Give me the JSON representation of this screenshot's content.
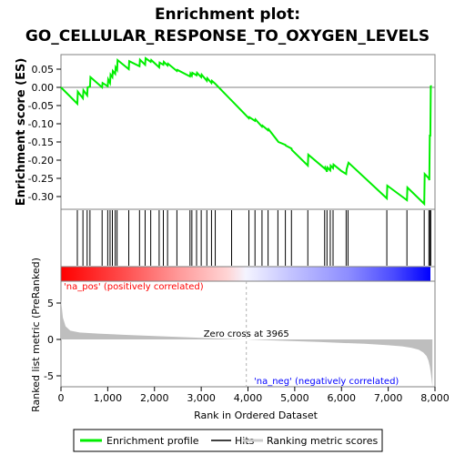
{
  "chart_data": {
    "type": "line",
    "title_line1": "Enrichment plot:",
    "title_line2": "GO_CELLULAR_RESPONSE_TO_OXYGEN_LEVELS",
    "es_panel": {
      "ylabel": "Enrichment score (ES)",
      "ylim": [
        -0.335,
        0.09
      ],
      "yticks": [
        0.05,
        0.0,
        -0.05,
        -0.1,
        -0.15,
        -0.2,
        -0.25,
        -0.3
      ],
      "ytick_labels": [
        "0.05",
        "0.00",
        "-0.05",
        "-0.10",
        "-0.15",
        "-0.20",
        "-0.25",
        "-0.30"
      ],
      "series_name": "Enrichment profile",
      "color": "#00ee00",
      "x": [
        0,
        350,
        360,
        470,
        480,
        560,
        570,
        620,
        630,
        880,
        890,
        1000,
        1010,
        1050,
        1060,
        1100,
        1110,
        1160,
        1170,
        1200,
        1210,
        1450,
        1460,
        1680,
        1690,
        1800,
        1810,
        1920,
        1930,
        2100,
        2110,
        2190,
        2200,
        2280,
        2290,
        2480,
        2490,
        2760,
        2770,
        2800,
        2810,
        2900,
        2910,
        3000,
        3010,
        3120,
        3130,
        3220,
        3230,
        3300,
        4020,
        4030,
        4150,
        4160,
        4300,
        4310,
        4430,
        4440,
        4640,
        4650,
        4800,
        4810,
        4930,
        4940,
        5280,
        5290,
        5640,
        5650,
        5690,
        5700,
        5760,
        5770,
        5820,
        5830,
        6000,
        6100,
        6110,
        6140,
        6150,
        6970,
        6980,
        7400,
        7410,
        7770,
        7780,
        7870,
        7880,
        7890,
        7900,
        7910,
        7920
      ],
      "y": [
        0.0,
        -0.045,
        -0.012,
        -0.03,
        -0.008,
        -0.022,
        0.0,
        0.002,
        0.028,
        0.0,
        0.012,
        0.003,
        0.022,
        0.012,
        0.035,
        0.028,
        0.045,
        0.037,
        0.055,
        0.048,
        0.075,
        0.05,
        0.072,
        0.058,
        0.076,
        0.062,
        0.08,
        0.07,
        0.075,
        0.055,
        0.068,
        0.062,
        0.07,
        0.06,
        0.065,
        0.045,
        0.048,
        0.03,
        0.038,
        0.032,
        0.04,
        0.033,
        0.04,
        0.028,
        0.035,
        0.018,
        0.025,
        0.012,
        0.018,
        0.01,
        -0.085,
        -0.082,
        -0.092,
        -0.088,
        -0.108,
        -0.105,
        -0.118,
        -0.115,
        -0.148,
        -0.15,
        -0.158,
        -0.16,
        -0.168,
        -0.172,
        -0.215,
        -0.185,
        -0.223,
        -0.22,
        -0.232,
        -0.22,
        -0.228,
        -0.215,
        -0.222,
        -0.212,
        -0.23,
        -0.238,
        -0.225,
        -0.212,
        -0.207,
        -0.305,
        -0.27,
        -0.31,
        -0.275,
        -0.32,
        -0.238,
        -0.25,
        -0.255,
        -0.13,
        -0.135,
        0.005,
        0.002
      ]
    },
    "hits": [
      350,
      470,
      560,
      620,
      880,
      1000,
      1050,
      1100,
      1160,
      1200,
      1450,
      1680,
      1800,
      1920,
      2100,
      2190,
      2280,
      2480,
      2760,
      2800,
      2900,
      3000,
      3120,
      3220,
      3300,
      3650,
      4020,
      4150,
      4300,
      4430,
      4640,
      4800,
      4930,
      5280,
      5640,
      5690,
      5760,
      5820,
      6100,
      6140,
      6970,
      7400,
      7770,
      7870,
      7890,
      7910
    ],
    "ranked_panel": {
      "ylabel": "Ranked list metric (PreRanked)",
      "ylim": [
        -6.5,
        8.0
      ],
      "yticks": [
        5,
        0,
        -5
      ],
      "ytick_labels": [
        "5",
        "0",
        "-5"
      ],
      "series_name": "Ranking metric scores",
      "x": [
        0,
        40,
        100,
        200,
        400,
        800,
        1500,
        2500,
        3500,
        3965,
        4500,
        5500,
        6500,
        7000,
        7300,
        7500,
        7650,
        7750,
        7820,
        7860,
        7890,
        7910,
        7930,
        7945
      ],
      "y": [
        5.5,
        3.0,
        1.8,
        1.2,
        0.95,
        0.8,
        0.6,
        0.35,
        0.1,
        0.0,
        -0.12,
        -0.35,
        -0.6,
        -0.8,
        -0.95,
        -1.15,
        -1.4,
        -1.8,
        -2.3,
        -2.9,
        -3.7,
        -4.6,
        -5.6,
        -6.5
      ]
    },
    "xaxis": {
      "xlabel": "Rank in Ordered Dataset",
      "xlim": [
        0,
        8000
      ],
      "xticks": [
        0,
        1000,
        2000,
        3000,
        4000,
        5000,
        6000,
        7000,
        8000
      ],
      "xtick_labels": [
        "0",
        "1,000",
        "2,000",
        "3,000",
        "4,000",
        "5,000",
        "6,000",
        "7,000",
        "8,000"
      ]
    },
    "zero_cross": 3965,
    "zero_cross_label": "Zero cross at 3965",
    "pos_label": "'na_pos' (positively correlated)",
    "neg_label": "'na_neg' (negatively correlated)",
    "legend": [
      "Enrichment profile",
      "Hits",
      "Ranking metric scores"
    ],
    "colors": {
      "profile": "#00ee00",
      "hits": "#000000",
      "pos_text": "#ff0000",
      "neg_text": "#0000ff",
      "metric_fill": "#bebebe",
      "pos_band": "#ff0000",
      "neg_band": "#0000ff"
    }
  }
}
